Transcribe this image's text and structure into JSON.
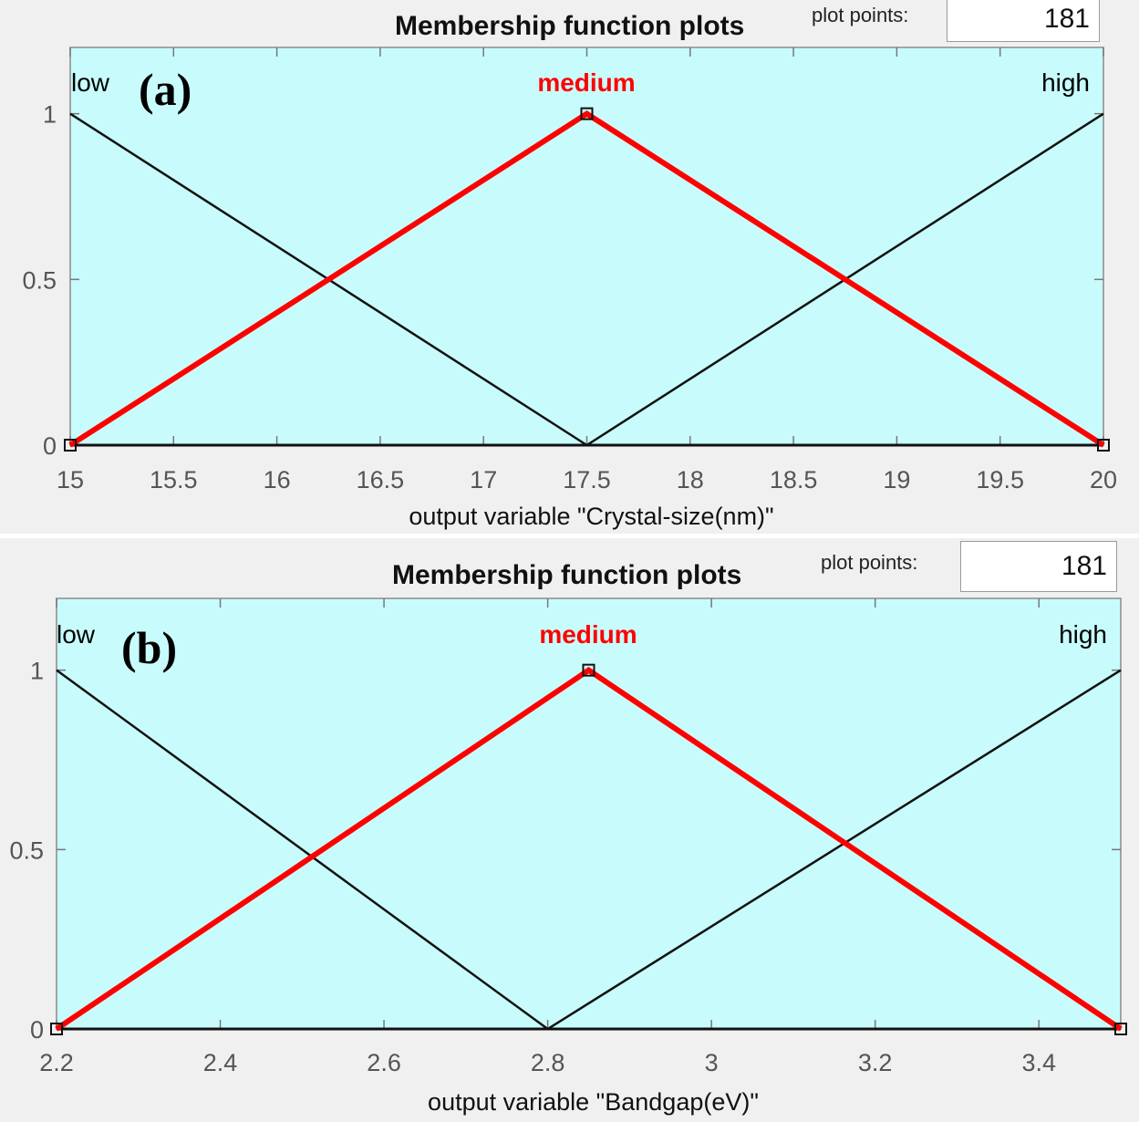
{
  "chart_data": [
    {
      "type": "line",
      "panel_label": "(a)",
      "title": "Membership function plots",
      "plot_points_label": "plot points:",
      "plot_points_value": "181",
      "xlabel": "output variable \"Crystal-size(nm)\"",
      "ylabel": "",
      "xlim": [
        15,
        20
      ],
      "ylim": [
        0,
        1.2
      ],
      "x_ticks": [
        15,
        15.5,
        16,
        16.5,
        17,
        17.5,
        18,
        18.5,
        19,
        19.5,
        20
      ],
      "x_tick_labels": [
        "15",
        "15.5",
        "16",
        "16.5",
        "17",
        "17.5",
        "18",
        "18.5",
        "19",
        "19.5",
        "20"
      ],
      "y_ticks": [
        0,
        0.5,
        1
      ],
      "y_tick_labels": [
        "0",
        "0.5",
        "1"
      ],
      "grid": false,
      "background_color": "#c8fcfc",
      "highlight_color": "#ff0000",
      "series": [
        {
          "name": "low",
          "active": false,
          "x": [
            15,
            17.5,
            20
          ],
          "y": [
            1,
            0,
            0
          ]
        },
        {
          "name": "medium",
          "active": true,
          "x": [
            15,
            17.5,
            20
          ],
          "y": [
            0,
            1,
            0
          ]
        },
        {
          "name": "high",
          "active": false,
          "x": [
            15,
            17.5,
            20
          ],
          "y": [
            0,
            0,
            1
          ]
        }
      ]
    },
    {
      "type": "line",
      "panel_label": "(b)",
      "title": "Membership function plots",
      "plot_points_label": "plot points:",
      "plot_points_value": "181",
      "xlabel": "output variable \"Bandgap(eV)\"",
      "ylabel": "",
      "xlim": [
        2.2,
        3.5
      ],
      "ylim": [
        0,
        1.2
      ],
      "x_ticks": [
        2.2,
        2.4,
        2.6,
        2.8,
        3.0,
        3.2,
        3.4
      ],
      "x_tick_labels": [
        "2.2",
        "2.4",
        "2.6",
        "2.8",
        "3",
        "3.2",
        "3.4"
      ],
      "y_ticks": [
        0,
        0.5,
        1
      ],
      "y_tick_labels": [
        "0",
        "0.5",
        "1"
      ],
      "grid": false,
      "background_color": "#c8fcfc",
      "highlight_color": "#ff0000",
      "series": [
        {
          "name": "low",
          "active": false,
          "x": [
            2.2,
            2.8,
            3.5
          ],
          "y": [
            1,
            0,
            0
          ]
        },
        {
          "name": "medium",
          "active": true,
          "x": [
            2.2,
            2.85,
            3.5
          ],
          "y": [
            0,
            1,
            0
          ]
        },
        {
          "name": "high",
          "active": false,
          "x": [
            2.2,
            2.8,
            3.5
          ],
          "y": [
            0,
            0,
            1
          ]
        }
      ]
    }
  ]
}
